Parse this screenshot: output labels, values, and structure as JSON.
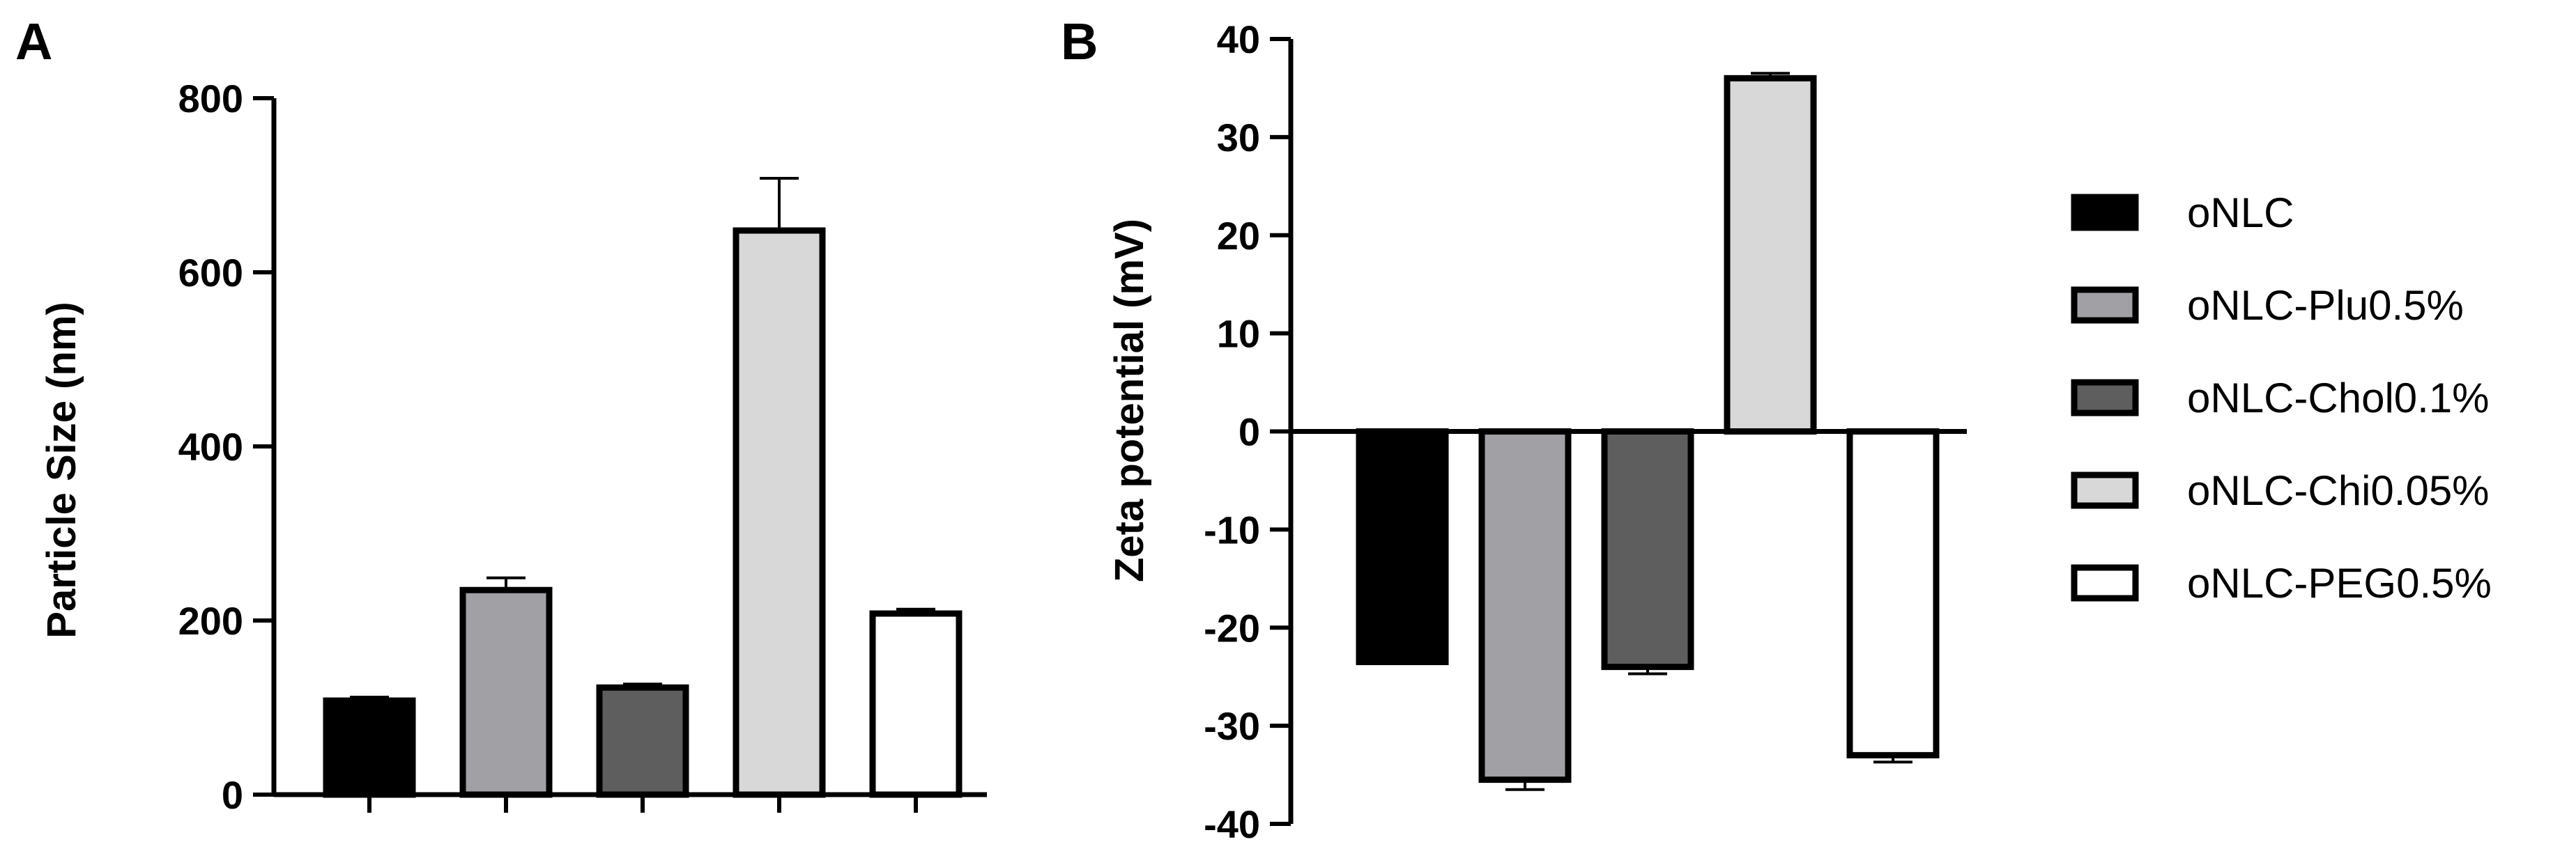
{
  "colors": {
    "oNLC": "#000000",
    "oNLC-Plu0.5%": "#a0a0a5",
    "oNLC-Chol0.1%": "#5e5e5e",
    "oNLC-Chi0.05%": "#d8d8d8",
    "oNLC-PEG0.5%": "#ffffff",
    "stroke": "#000000"
  },
  "legend": {
    "placement": "right",
    "items": [
      {
        "label": "oNLC",
        "color": "#000000"
      },
      {
        "label": "oNLC-Plu0.5%",
        "color": "#a0a0a5"
      },
      {
        "label": "oNLC-Chol0.1%",
        "color": "#5e5e5e"
      },
      {
        "label": "oNLC-Chi0.05%",
        "color": "#d8d8d8"
      },
      {
        "label": "oNLC-PEG0.5%",
        "color": "#ffffff"
      }
    ]
  },
  "chart_data": [
    {
      "panel": "A",
      "type": "bar",
      "categories": [
        "oNLC",
        "oNLC-Plu0.5%",
        "oNLC-Chol0.1%",
        "oNLC-Chi0.05%",
        "oNLC-PEG0.5%"
      ],
      "values": [
        108,
        235,
        123,
        648,
        208
      ],
      "errors": [
        4,
        14,
        4,
        60,
        5
      ],
      "ylabel": "Particle Size (nm)",
      "xlabel": "",
      "ylim": [
        0,
        800
      ],
      "yticks": [
        0,
        200,
        400,
        600,
        800
      ],
      "grid": false
    },
    {
      "panel": "B",
      "type": "bar",
      "categories": [
        "oNLC",
        "oNLC-Plu0.5%",
        "oNLC-Chol0.1%",
        "oNLC-Chi0.05%",
        "oNLC-PEG0.5%"
      ],
      "values": [
        -23.5,
        -35.5,
        -24.0,
        36.0,
        -33.0
      ],
      "errors": [
        0.0,
        1.0,
        0.7,
        0.5,
        0.7
      ],
      "ylabel": "Zeta potential (mV)",
      "xlabel": "",
      "ylim": [
        -40,
        40
      ],
      "yticks": [
        40,
        30,
        20,
        10,
        0,
        -10,
        -20,
        -30,
        -40
      ],
      "grid": false
    }
  ]
}
